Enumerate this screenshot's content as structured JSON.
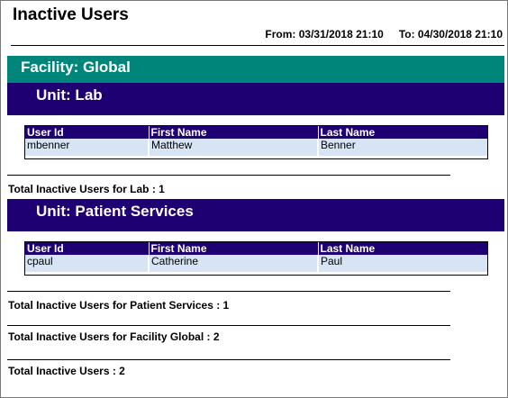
{
  "report": {
    "title": "Inactive Users",
    "date_range": {
      "from": "From: 03/31/2018 21:10",
      "to": "To: 04/30/2018 21:10"
    }
  },
  "facility": {
    "header": "Facility: Global",
    "columns": [
      "User Id",
      "First Name",
      "Last Name"
    ],
    "units": [
      {
        "header": "Unit: Lab",
        "rows": [
          [
            "mbenner",
            "Matthew",
            "Benner"
          ]
        ],
        "total": "Total Inactive Users for Lab : 1"
      },
      {
        "header": "Unit: Patient Services",
        "rows": [
          [
            "cpaul",
            "Catherine",
            "Paul"
          ]
        ],
        "total": "Total Inactive Users for Patient Services : 1"
      }
    ],
    "total": "Total Inactive Users for Facility Global : 2"
  },
  "grand_total": "Total Inactive Users : 2",
  "colors": {
    "facility_band": "#00857a",
    "unit_band": "#1f0072",
    "row_fill": "#d6e4f4"
  }
}
